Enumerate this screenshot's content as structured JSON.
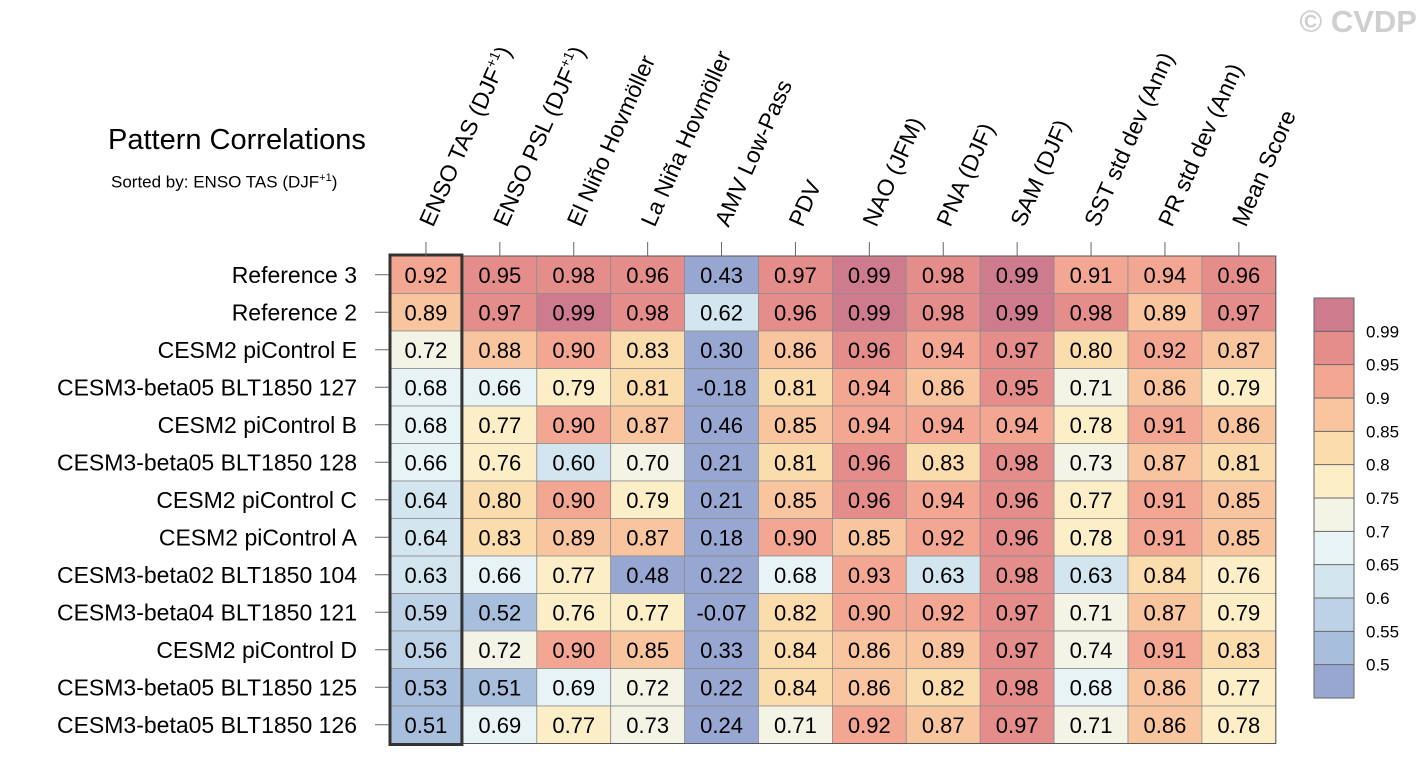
{
  "watermark": "© CVDP",
  "title": "Pattern Correlations",
  "subtitle": {
    "prefix": "Sorted by: ENSO TAS (DJF",
    "sup": "+1",
    "suffix": ")"
  },
  "chart_data": {
    "type": "heatmap",
    "columns": [
      {
        "text": "ENSO TAS (DJF",
        "sup": "+1",
        "after": ")"
      },
      {
        "text": "ENSO PSL (DJF",
        "sup": "+1",
        "after": ")"
      },
      {
        "text": "El Niño Hovmöller"
      },
      {
        "text": "La Niña Hovmöller"
      },
      {
        "text": "AMV Low-Pass"
      },
      {
        "text": "PDV"
      },
      {
        "text": "NAO (JFM)"
      },
      {
        "text": "PNA (DJF)"
      },
      {
        "text": "SAM (DJF)"
      },
      {
        "text": "SST std dev (Ann)"
      },
      {
        "text": "PR std dev (Ann)"
      },
      {
        "text": "Mean Score"
      }
    ],
    "rows": [
      "Reference 3",
      "Reference 2",
      "CESM2 piControl E",
      "CESM3-beta05 BLT1850 127",
      "CESM2 piControl B",
      "CESM3-beta05 BLT1850 128",
      "CESM2 piControl C",
      "CESM2 piControl A",
      "CESM3-beta02 BLT1850 104",
      "CESM3-beta04 BLT1850 121",
      "CESM2 piControl D",
      "CESM3-beta05 BLT1850 125",
      "CESM3-beta05 BLT1850 126"
    ],
    "values": [
      [
        "0.92",
        "0.95",
        "0.98",
        "0.96",
        "0.43",
        "0.97",
        "0.99",
        "0.98",
        "0.99",
        "0.91",
        "0.94",
        "0.96"
      ],
      [
        "0.89",
        "0.97",
        "0.99",
        "0.98",
        "0.62",
        "0.96",
        "0.99",
        "0.98",
        "0.99",
        "0.98",
        "0.89",
        "0.97"
      ],
      [
        "0.72",
        "0.88",
        "0.90",
        "0.83",
        "0.30",
        "0.86",
        "0.96",
        "0.94",
        "0.97",
        "0.80",
        "0.92",
        "0.87"
      ],
      [
        "0.68",
        "0.66",
        "0.79",
        "0.81",
        "-0.18",
        "0.81",
        "0.94",
        "0.86",
        "0.95",
        "0.71",
        "0.86",
        "0.79"
      ],
      [
        "0.68",
        "0.77",
        "0.90",
        "0.87",
        "0.46",
        "0.85",
        "0.94",
        "0.94",
        "0.94",
        "0.78",
        "0.91",
        "0.86"
      ],
      [
        "0.66",
        "0.76",
        "0.60",
        "0.70",
        "0.21",
        "0.81",
        "0.96",
        "0.83",
        "0.98",
        "0.73",
        "0.87",
        "0.81"
      ],
      [
        "0.64",
        "0.80",
        "0.90",
        "0.79",
        "0.21",
        "0.85",
        "0.96",
        "0.94",
        "0.96",
        "0.77",
        "0.91",
        "0.85"
      ],
      [
        "0.64",
        "0.83",
        "0.89",
        "0.87",
        "0.18",
        "0.90",
        "0.85",
        "0.92",
        "0.96",
        "0.78",
        "0.91",
        "0.85"
      ],
      [
        "0.63",
        "0.66",
        "0.77",
        "0.48",
        "0.22",
        "0.68",
        "0.93",
        "0.63",
        "0.98",
        "0.63",
        "0.84",
        "0.76"
      ],
      [
        "0.59",
        "0.52",
        "0.76",
        "0.77",
        "-0.07",
        "0.82",
        "0.90",
        "0.92",
        "0.97",
        "0.71",
        "0.87",
        "0.79"
      ],
      [
        "0.56",
        "0.72",
        "0.90",
        "0.85",
        "0.33",
        "0.84",
        "0.86",
        "0.89",
        "0.97",
        "0.74",
        "0.91",
        "0.83"
      ],
      [
        "0.53",
        "0.51",
        "0.69",
        "0.72",
        "0.22",
        "0.84",
        "0.86",
        "0.82",
        "0.98",
        "0.68",
        "0.86",
        "0.77"
      ],
      [
        "0.51",
        "0.69",
        "0.77",
        "0.73",
        "0.24",
        "0.71",
        "0.92",
        "0.87",
        "0.97",
        "0.71",
        "0.86",
        "0.78"
      ]
    ],
    "highlight_column": 0,
    "colorbar": {
      "levels": [
        "0.5",
        "0.55",
        "0.6",
        "0.65",
        "0.7",
        "0.75",
        "0.8",
        "0.85",
        "0.9",
        "0.95",
        "0.99"
      ],
      "colors": [
        "#98a7d2",
        "#a8bedd",
        "#bdd2e6",
        "#d3e6f0",
        "#e8f3f6",
        "#f3f3e6",
        "#fcefc8",
        "#fbdcad",
        "#f8c59e",
        "#f3a793",
        "#e48d8b",
        "#cf7b8e"
      ]
    }
  }
}
